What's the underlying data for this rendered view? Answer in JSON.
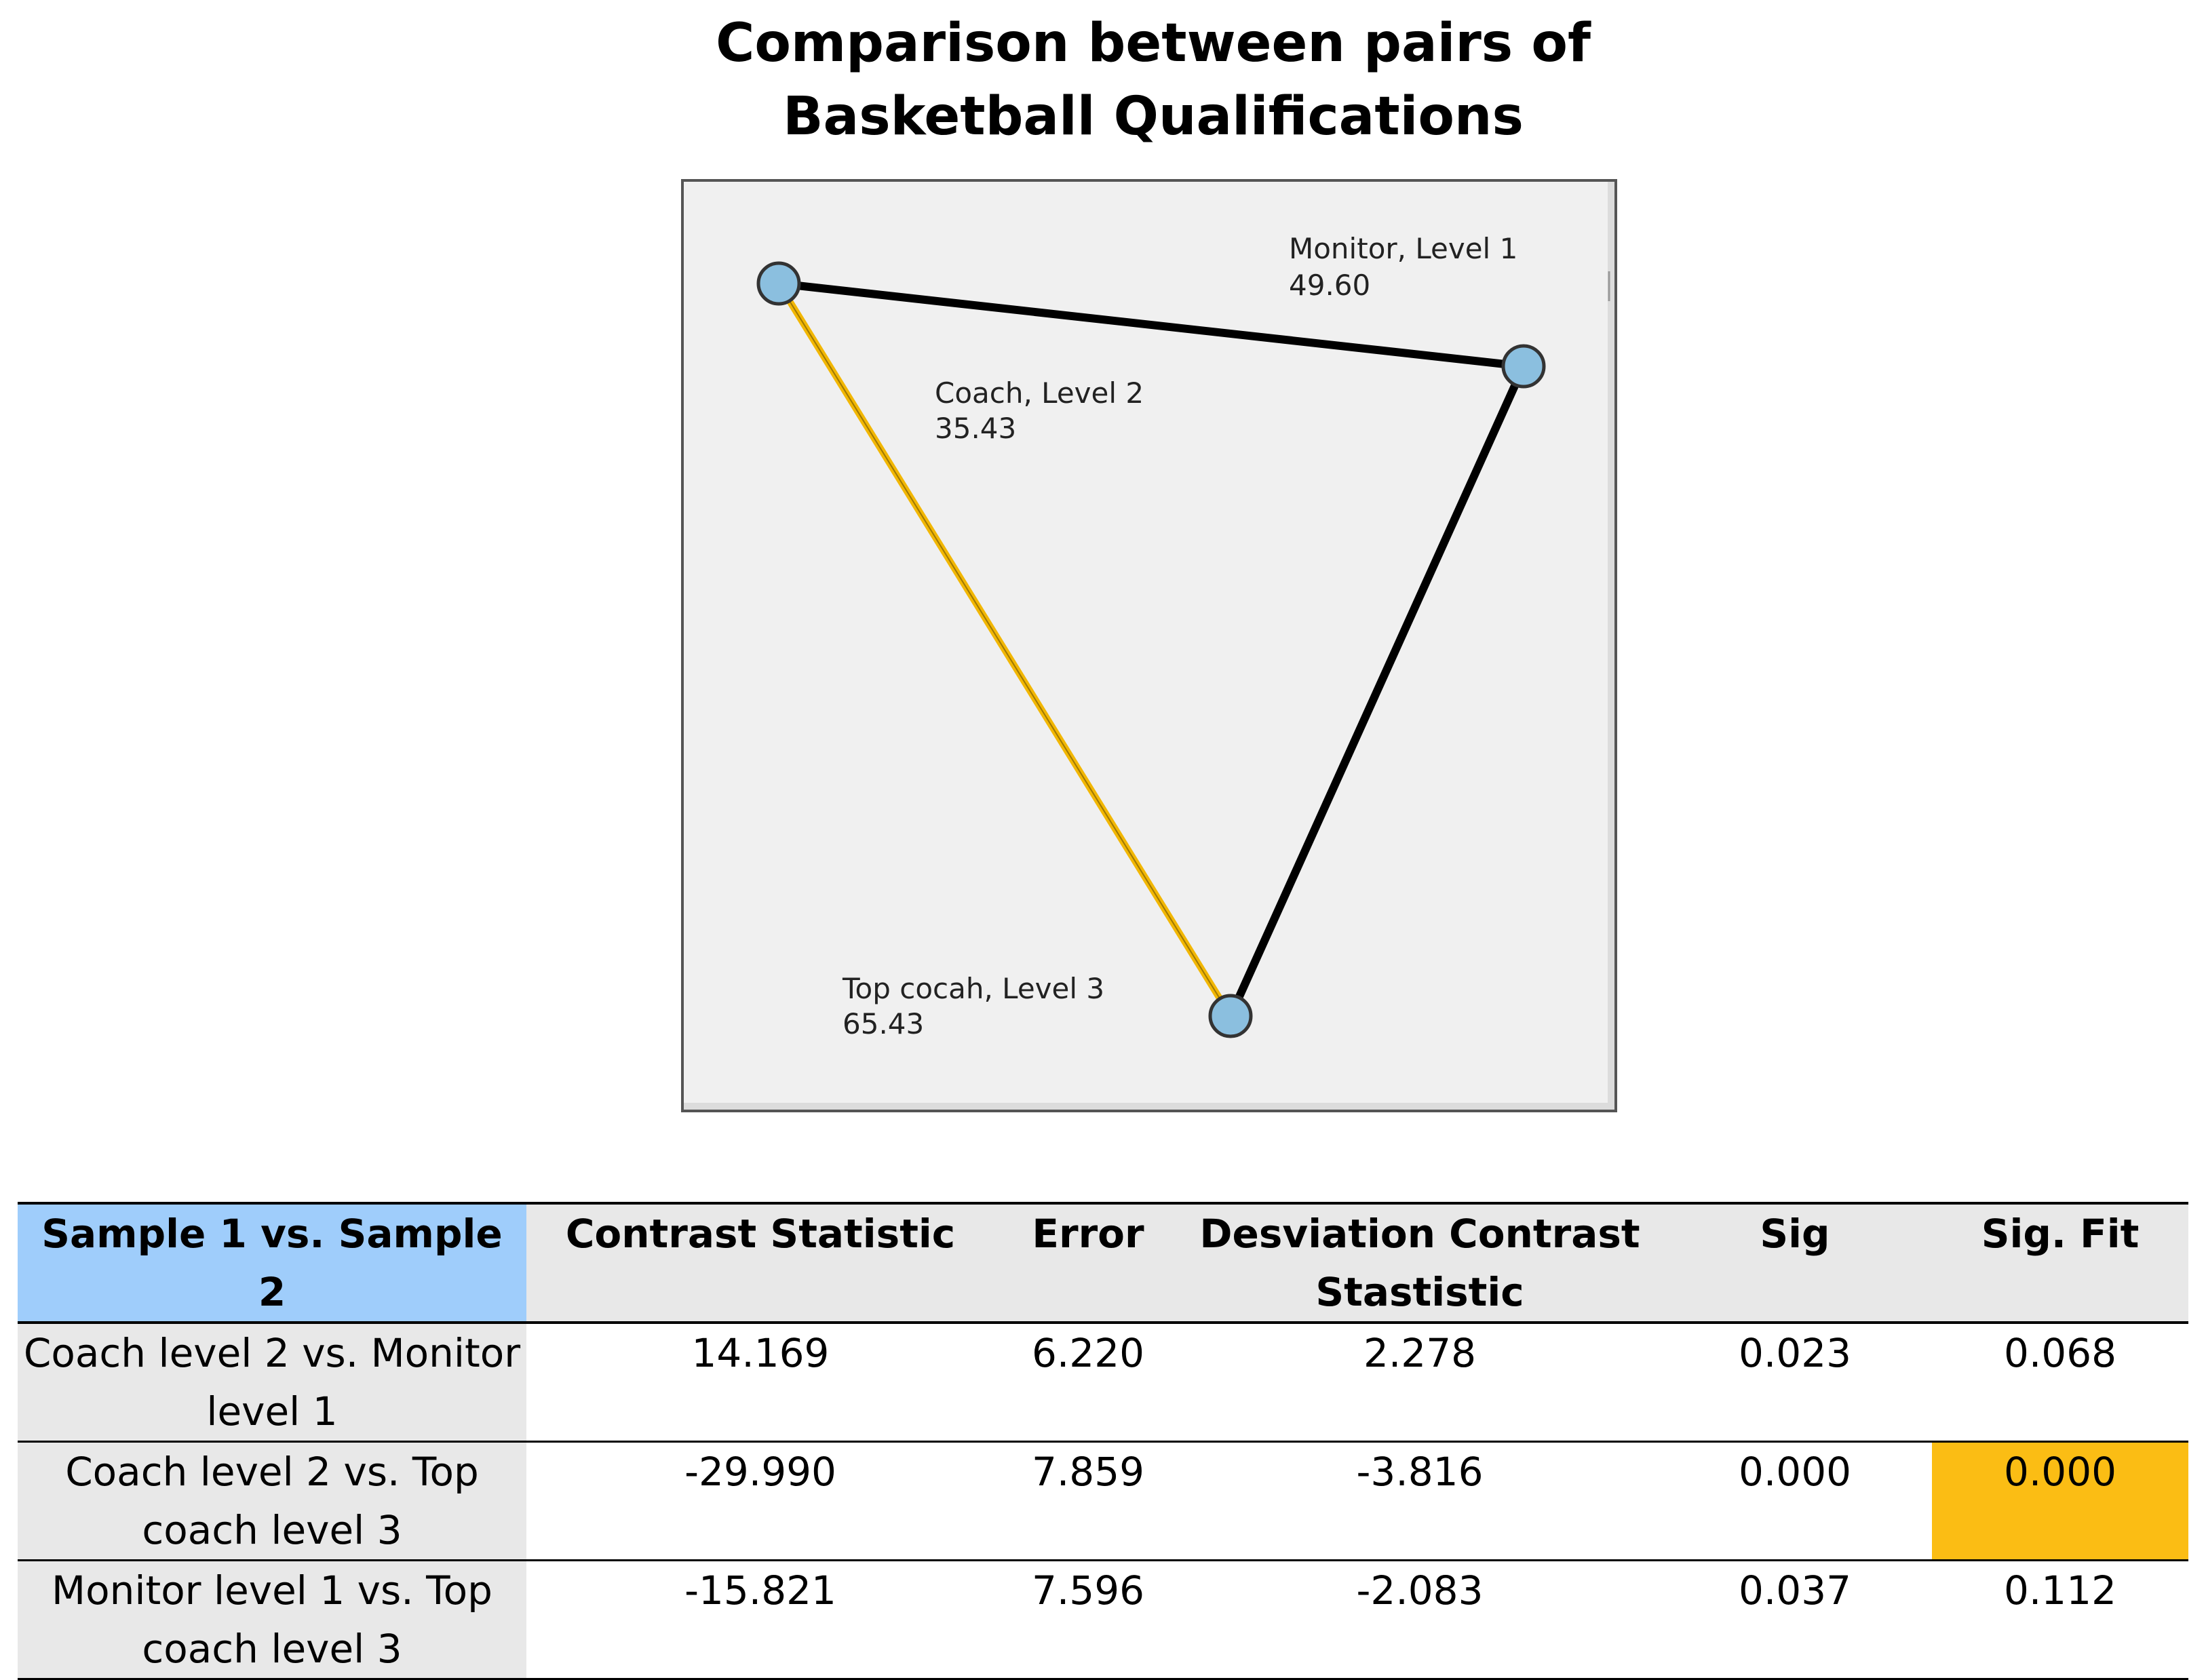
{
  "title": {
    "line1": "Comparison between pairs of",
    "line2": "Basketball Qualifications"
  },
  "diagram": {
    "nodes": [
      {
        "id": "coach",
        "label": "Coach, Level 2",
        "value": "35.43"
      },
      {
        "id": "monitor",
        "label": "Monitor, Level 1",
        "value": "49.60"
      },
      {
        "id": "top",
        "label": "Top cocah, Level 3",
        "value": "65.43"
      }
    ],
    "edges": [
      {
        "from": "coach",
        "to": "monitor",
        "color": "#000000"
      },
      {
        "from": "monitor",
        "to": "top",
        "color": "#000000"
      },
      {
        "from": "coach",
        "to": "top",
        "color": "#f2b705"
      }
    ],
    "node_fill": "#8bbfdf"
  },
  "table": {
    "headers": [
      "Sample 1 vs. Sample 2",
      "Contrast Statistic",
      "Error",
      "Desviation Contrast Stastistic",
      "Sig",
      "Sig. Fit"
    ],
    "rows": [
      {
        "pair": "Coach level 2 vs. Monitor level 1",
        "contrast": "14.169",
        "error": "6.220",
        "deviation": "2.278",
        "sig": "0.023",
        "sig_fit": "0.068"
      },
      {
        "pair": "Coach level 2 vs. Top coach level 3",
        "contrast": "-29.990",
        "error": "7.859",
        "deviation": "-3.816",
        "sig": "0.000",
        "sig_fit": "0.000"
      },
      {
        "pair": "Monitor level 1 vs. Top coach level 3",
        "contrast": "-15.821",
        "error": "7.596",
        "deviation": "-2.083",
        "sig": "0.037",
        "sig_fit": "0.112"
      }
    ],
    "header_highlight_color": "#9fcdfb",
    "cell_highlight_color": "#fbbd14"
  }
}
